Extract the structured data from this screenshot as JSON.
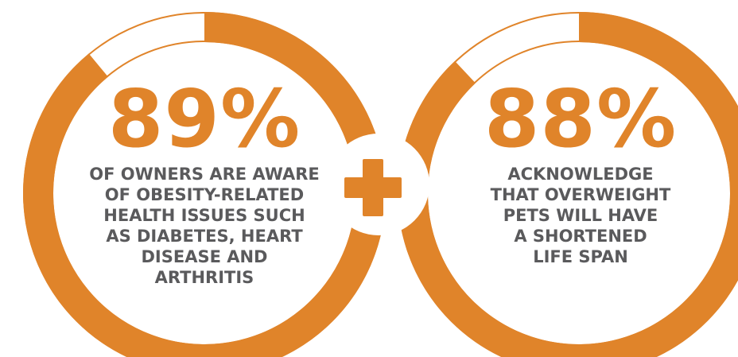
{
  "colors": {
    "accent": "#E0842A",
    "text_dark": "#5A5A5C",
    "ring_gap": "#FFFFFF"
  },
  "stat_left": {
    "percent_label": "89%",
    "percent_value": 89,
    "description_lines": [
      "OF OWNERS ARE AWARE",
      "OF OBESITY-RELATED",
      "HEALTH ISSUES SUCH",
      "AS DIABETES, HEART",
      "DISEASE AND",
      "ARTHRITIS"
    ]
  },
  "stat_right": {
    "percent_label": "88%",
    "percent_value": 88,
    "description_lines": [
      "ACKNOWLEDGE",
      "THAT OVERWEIGHT",
      "PETS WILL HAVE",
      "A SHORTENED",
      "LIFE SPAN"
    ]
  },
  "connector": {
    "icon": "plus-icon"
  }
}
